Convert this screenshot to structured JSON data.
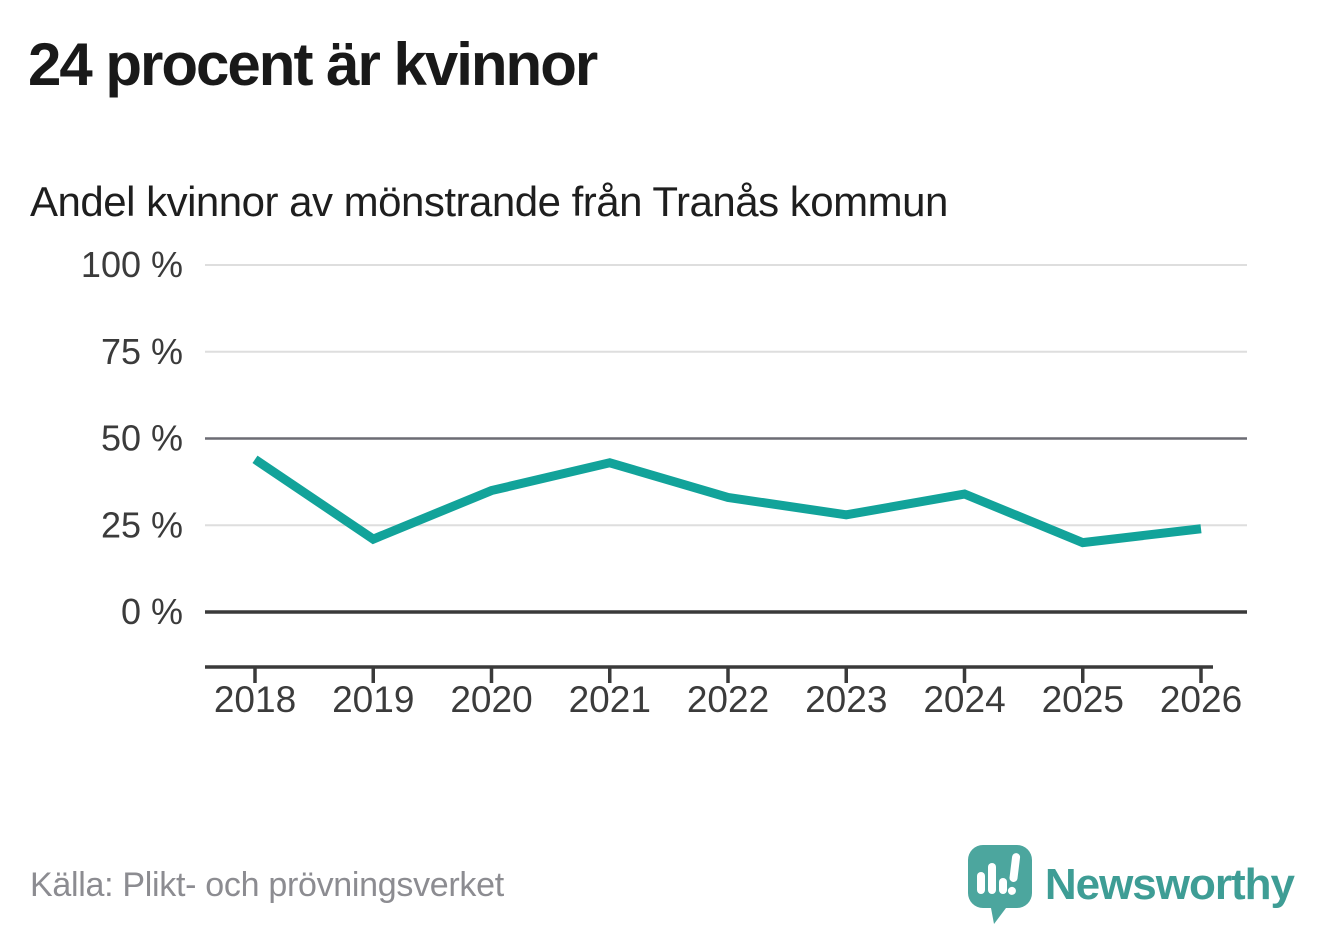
{
  "title": "24 procent är kvinnor",
  "subtitle": "Andel kvinnor av mönstrande från Tranås kommun",
  "source": "Källa: Plikt- och prövningsverket",
  "brand": {
    "name": "Newsworthy",
    "logo_color": "#4ca69e",
    "wordmark_color": "#3e9d95"
  },
  "colors": {
    "line": "#12a39a",
    "grid_light": "#dedede",
    "grid_mid": "#6c6c74",
    "axis_dark": "#3a3a3a",
    "tick_label": "#3b3b3b",
    "title_text": "#191919",
    "muted_text": "#8c8c91"
  },
  "chart_data": {
    "type": "line",
    "title": "24 procent är kvinnor",
    "subtitle": "Andel kvinnor av mönstrande från Tranås kommun",
    "x": [
      2018,
      2019,
      2020,
      2021,
      2022,
      2023,
      2024,
      2025,
      2026
    ],
    "series": [
      {
        "name": "Andel kvinnor av mönstrande",
        "values": [
          44,
          21,
          35,
          43,
          33,
          28,
          34,
          20,
          24
        ]
      }
    ],
    "xlabel": "",
    "ylabel": "",
    "ylim": [
      0,
      100
    ],
    "ytick_step": 25,
    "ytick_suffix": " %",
    "yticks": [
      "0 %",
      "25 %",
      "50 %",
      "75 %",
      "100 %"
    ],
    "grid": true,
    "emphasized_gridlines": [
      0,
      50
    ],
    "legend_position": "none"
  }
}
